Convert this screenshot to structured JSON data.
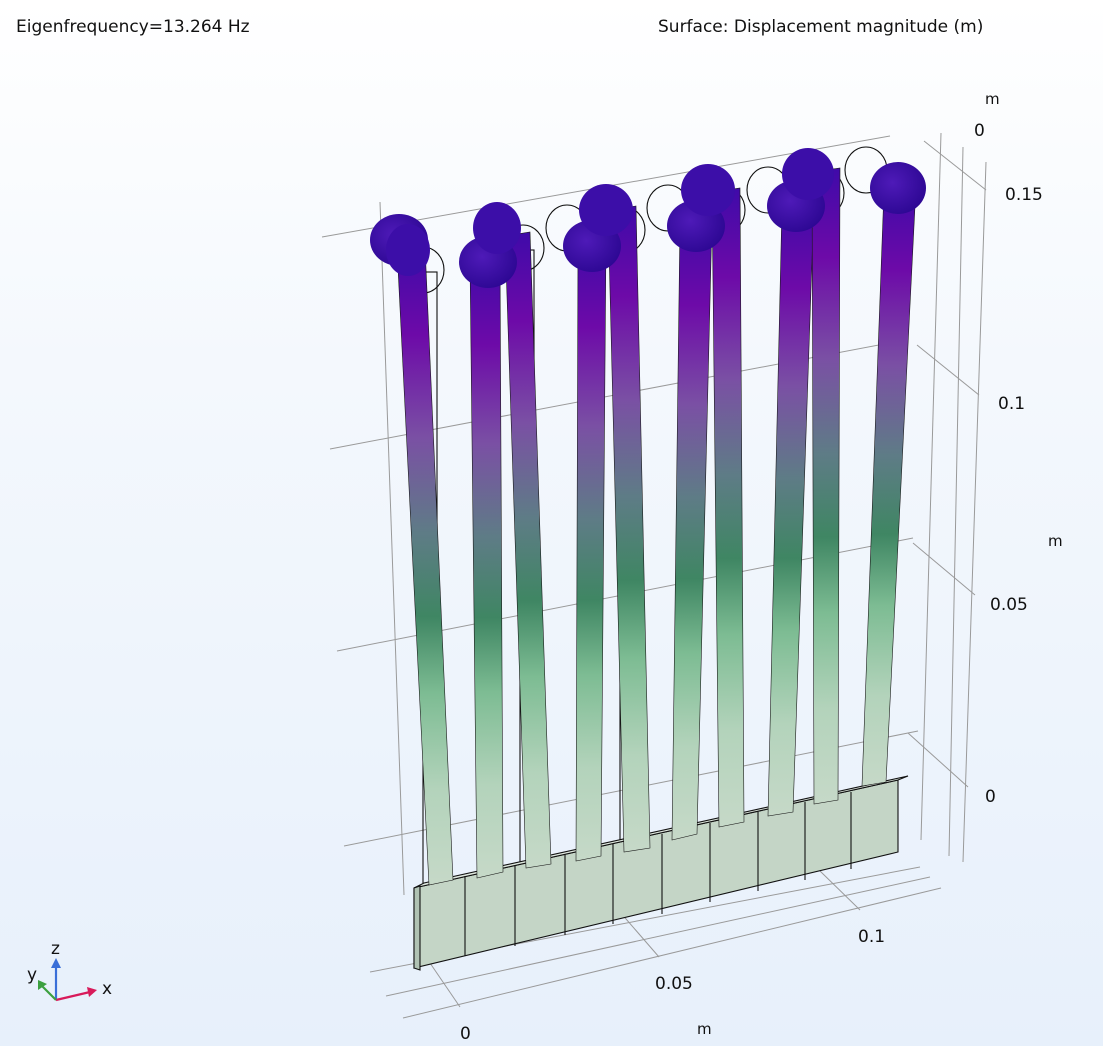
{
  "header": {
    "left": "Eigenfrequency=13.264 Hz",
    "right": "Surface: Displacement magnitude (m)"
  },
  "axes": {
    "x_ticks": [
      "0",
      "0.05",
      "0.1"
    ],
    "x_unit": "m",
    "z_ticks_right": [
      "0",
      "0.05",
      "0.1",
      "0.15"
    ],
    "z_unit": "m",
    "y_tick": "0",
    "y_unit": "m"
  },
  "triad": {
    "x": "x",
    "y": "y",
    "z": "z"
  },
  "colors": {
    "max": "#3a0aa8",
    "high": "#7a0aa6",
    "mid": "#6a7a8a",
    "low": "#4a8a6a",
    "base": "#c4d5c6"
  }
}
